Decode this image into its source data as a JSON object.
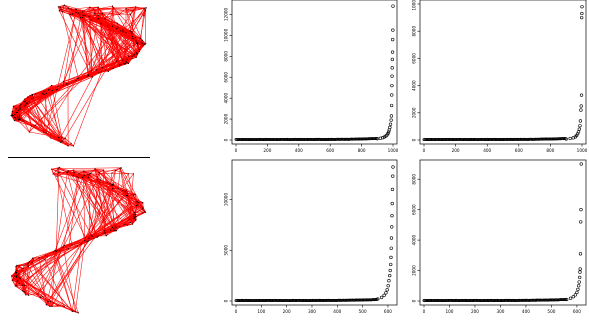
{
  "colors": {
    "mesh": "#ff0000",
    "vertex": "#000000",
    "points": "#000000",
    "divider": "#000000"
  },
  "meshes": [
    {
      "shape": "S-shaped triangulated point cloud with triangles bridging the gaps"
    },
    {
      "shape": "S-shaped triangulated point cloud with triangles bridging the gaps"
    }
  ],
  "chart_data": [
    {
      "type": "scatter",
      "n": 1000,
      "xlim": [
        0,
        1000
      ],
      "ylim": [
        0,
        13000
      ],
      "xticks": [
        "0",
        "200",
        "400",
        "600",
        "800",
        "1000"
      ],
      "yticks": [
        "0",
        "2000",
        "4000",
        "6000",
        "8000",
        "10000",
        "12000"
      ],
      "x": [
        900,
        920,
        935,
        945,
        955,
        962,
        968,
        972,
        976,
        980,
        984,
        988,
        990,
        991,
        992,
        993,
        994,
        995,
        996,
        997,
        998,
        999,
        1000
      ],
      "y": [
        120,
        160,
        220,
        290,
        380,
        480,
        620,
        780,
        950,
        1200,
        1500,
        1900,
        2300,
        3300,
        4300,
        5200,
        6100,
        6900,
        7700,
        8400,
        9600,
        10500,
        12800
      ]
    },
    {
      "type": "scatter",
      "n": 1000,
      "xlim": [
        0,
        1000
      ],
      "ylim": [
        0,
        10000
      ],
      "xticks": [
        "0",
        "200",
        "400",
        "600",
        "800",
        "1000"
      ],
      "yticks": [
        "0",
        "2000",
        "4000",
        "6000",
        "8000",
        "10000"
      ],
      "x": [
        900,
        925,
        945,
        958,
        966,
        972,
        978,
        983,
        987,
        990,
        993,
        995,
        997,
        998,
        999,
        1000
      ],
      "y": [
        70,
        110,
        160,
        230,
        320,
        450,
        600,
        800,
        1050,
        1400,
        2200,
        2500,
        3300,
        9000,
        9300,
        9800
      ]
    },
    {
      "type": "scatter",
      "n": 620,
      "xlim": [
        0,
        620
      ],
      "ylim": [
        0,
        13500
      ],
      "xticks": [
        "0",
        "100",
        "200",
        "300",
        "400",
        "500",
        "600"
      ],
      "yticks": [
        "0",
        "5000",
        "10000"
      ],
      "x": [
        560,
        575,
        585,
        592,
        597,
        601,
        604,
        607,
        609,
        611,
        612,
        613,
        614,
        615,
        616,
        617,
        618,
        619,
        620
      ],
      "y": [
        200,
        350,
        550,
        800,
        1100,
        1500,
        2000,
        2500,
        3000,
        3600,
        4300,
        5200,
        6200,
        7300,
        8400,
        9600,
        11000,
        12300,
        13200
      ]
    },
    {
      "type": "scatter",
      "n": 620,
      "xlim": [
        0,
        620
      ],
      "ylim": [
        0,
        9000
      ],
      "xticks": [
        "0",
        "100",
        "200",
        "300",
        "400",
        "500",
        "600"
      ],
      "yticks": [
        "0",
        "2000",
        "4000",
        "6000",
        "8000"
      ],
      "x": [
        560,
        575,
        586,
        594,
        600,
        604,
        607,
        609,
        611,
        612,
        613,
        614,
        615,
        616,
        617
      ],
      "y": [
        100,
        180,
        280,
        400,
        560,
        760,
        1000,
        1250,
        1550,
        1900,
        2100,
        3100,
        5200,
        6000,
        9000
      ]
    }
  ]
}
